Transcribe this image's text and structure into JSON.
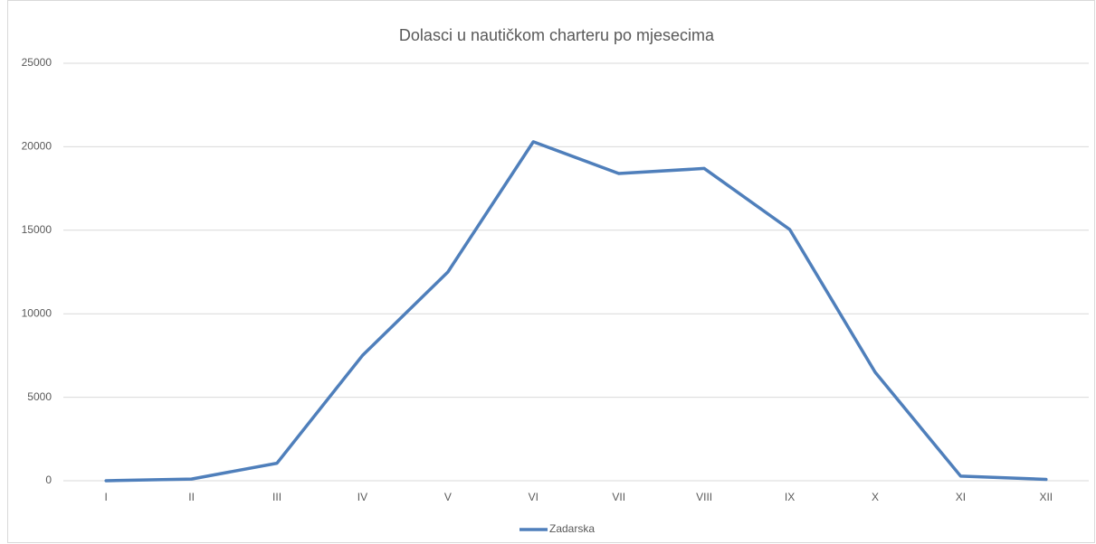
{
  "chart_data": {
    "type": "line",
    "title": "Dolasci u nautičkom charteru po mjesecima",
    "categories": [
      "I",
      "II",
      "III",
      "IV",
      "V",
      "VI",
      "VII",
      "VIII",
      "IX",
      "X",
      "XI",
      "XII"
    ],
    "series": [
      {
        "name": "Zadarska",
        "color": "#4f7fbb",
        "values": [
          0,
          100,
          1050,
          7500,
          12500,
          20300,
          18400,
          18700,
          15050,
          6500,
          280,
          80
        ]
      }
    ],
    "ylim": [
      0,
      25000
    ],
    "yticks": [
      0,
      5000,
      10000,
      15000,
      20000,
      25000
    ],
    "grid": true,
    "legend": "bottom"
  }
}
